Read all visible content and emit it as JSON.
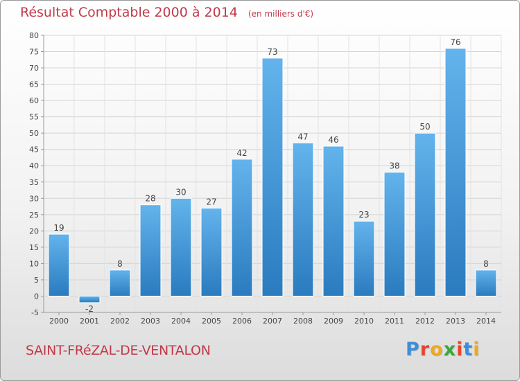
{
  "header": {
    "title": "Résultat Comptable 2000 à 2014",
    "unit": "(en milliers d'€)"
  },
  "footer": {
    "commune": "SAINT-FRéZAL-DE-VENTALON",
    "brand_letters": [
      "P",
      "r",
      "o",
      "x",
      "i",
      "t",
      "i"
    ],
    "brand_colors": [
      "#3c8ed8",
      "#e8442e",
      "#f0a81c",
      "#3aa83a",
      "#e8442e",
      "#3c8ed8",
      "#f0a81c"
    ]
  },
  "chart_data": {
    "type": "bar",
    "categories": [
      "2000",
      "2001",
      "2002",
      "2003",
      "2004",
      "2005",
      "2006",
      "2007",
      "2008",
      "2009",
      "2010",
      "2011",
      "2012",
      "2013",
      "2014"
    ],
    "values": [
      19,
      -2,
      8,
      28,
      30,
      27,
      42,
      73,
      47,
      46,
      23,
      38,
      50,
      76,
      8
    ],
    "yticks": [
      -5,
      0,
      5,
      10,
      15,
      20,
      25,
      30,
      35,
      40,
      45,
      50,
      55,
      60,
      65,
      70,
      75,
      80
    ],
    "ylim": [
      -5,
      80
    ],
    "grid": true,
    "bar_color": "#4a9ad8"
  }
}
